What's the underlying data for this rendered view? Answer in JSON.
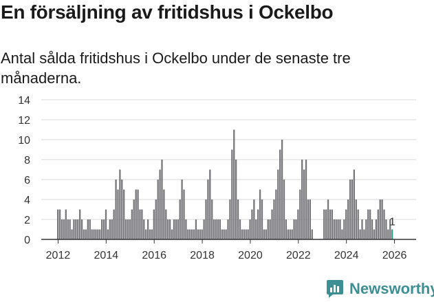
{
  "title": "En försäljning av fritidshus i Ockelbo",
  "subtitle": "Antal sålda fritidshus i Ockelbo under de senaste tre månaderna.",
  "brand": {
    "name": "Newsworthy",
    "color": "#3d8f94",
    "icon": "newsworthy-logo-icon"
  },
  "chart_data": {
    "type": "bar",
    "start": 2012.0,
    "step": 0.0833,
    "ylim": [
      0,
      14
    ],
    "yticks": [
      0,
      2,
      4,
      6,
      8,
      10,
      12,
      14
    ],
    "xticks": [
      "2012",
      "2014",
      "2016",
      "2018",
      "2020",
      "2022",
      "2024",
      "2026"
    ],
    "x_range": [
      2011.3,
      2026.9
    ],
    "colors": {
      "bar": "#77777c",
      "highlight": "#2e9d8e",
      "grid": "#d9d9d9",
      "axis": "#333333"
    },
    "values": [
      3,
      3,
      2,
      2,
      3,
      2,
      2,
      1,
      2,
      2,
      2,
      3,
      2,
      1,
      1,
      2,
      2,
      1,
      1,
      1,
      1,
      1,
      2,
      2,
      3,
      1,
      2,
      2,
      3,
      6,
      5,
      7,
      6,
      5,
      2,
      2,
      2,
      3,
      4,
      5,
      5,
      3,
      3,
      2,
      1,
      2,
      1,
      1,
      3,
      4,
      6,
      7,
      8,
      5,
      3,
      2,
      2,
      1,
      2,
      2,
      2,
      4,
      6,
      5,
      2,
      1,
      1,
      1,
      1,
      2,
      1,
      1,
      1,
      2,
      4,
      6,
      7,
      4,
      2,
      2,
      2,
      2,
      1,
      1,
      1,
      2,
      4,
      9,
      11,
      8,
      4,
      2,
      1,
      1,
      1,
      1,
      2,
      3,
      4,
      2,
      3,
      5,
      4,
      1,
      1,
      2,
      2,
      3,
      4,
      5,
      7,
      9,
      10,
      6,
      2,
      1,
      1,
      1,
      2,
      2,
      3,
      5,
      8,
      7,
      8,
      4,
      4,
      1,
      0,
      0,
      0,
      0,
      0,
      3,
      3,
      4,
      3,
      3,
      2,
      2,
      2,
      2,
      1,
      2,
      3,
      4,
      6,
      6,
      7,
      4,
      3,
      1,
      2,
      1,
      2,
      3,
      3,
      2,
      1,
      2,
      3,
      4,
      4,
      3,
      2,
      1,
      2,
      1
    ],
    "highlight_index": 167,
    "annotation": "1"
  }
}
